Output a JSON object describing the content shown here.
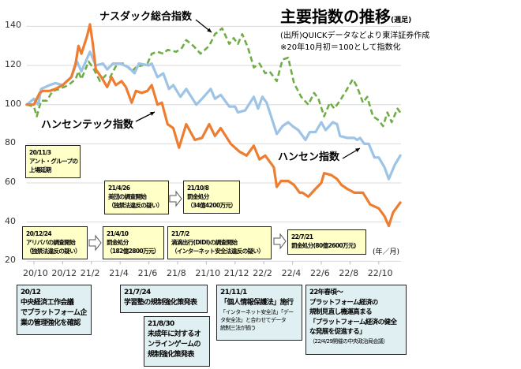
{
  "chart_data": {
    "type": "line",
    "title": "主要指数の推移",
    "title_suffix": "(週足)",
    "source": "(出所)QUICKデータなどより東洋証券作成",
    "note": "※20年10月初＝100として指数化",
    "x_unit_label": "(年／月)",
    "x_unit": "months since 2020/10",
    "x_ticks": [
      "20/10",
      "20/12",
      "21/2",
      "21/4",
      "21/6",
      "21/8",
      "21/10",
      "21/12",
      "22/2",
      "22/4",
      "22/6",
      "22/8",
      "22/10"
    ],
    "y_ticks": [
      20,
      40,
      60,
      80,
      100,
      120,
      140
    ],
    "ylim": [
      20,
      140
    ],
    "grid": true,
    "series": [
      {
        "name": "ナスダック総合指数",
        "color": "#70ad47",
        "style": "dashed",
        "points": [
          [
            -0.5,
            100
          ],
          [
            0,
            99
          ],
          [
            0.2,
            94
          ],
          [
            0.5,
            102
          ],
          [
            0.9,
            102
          ],
          [
            1.3,
            107
          ],
          [
            1.8,
            108
          ],
          [
            2.4,
            110
          ],
          [
            2.9,
            113
          ],
          [
            3.1,
            117
          ],
          [
            3.3,
            113
          ],
          [
            3.8,
            122
          ],
          [
            4.1,
            119
          ],
          [
            4.6,
            112
          ],
          [
            5.0,
            115
          ],
          [
            5.3,
            114
          ],
          [
            5.8,
            121
          ],
          [
            6.3,
            121
          ],
          [
            6.8,
            117
          ],
          [
            7.1,
            119
          ],
          [
            7.9,
            121
          ],
          [
            8.2,
            126
          ],
          [
            8.6,
            127
          ],
          [
            9.0,
            126
          ],
          [
            9.3,
            128
          ],
          [
            9.9,
            127
          ],
          [
            10.3,
            129
          ],
          [
            10.6,
            133
          ],
          [
            11.1,
            130
          ],
          [
            11.6,
            126
          ],
          [
            12.2,
            130
          ],
          [
            12.6,
            136
          ],
          [
            13.1,
            139
          ],
          [
            13.6,
            131
          ],
          [
            13.9,
            134
          ],
          [
            14.2,
            131
          ],
          [
            14.5,
            136
          ],
          [
            14.9,
            129
          ],
          [
            15.3,
            119
          ],
          [
            15.7,
            121
          ],
          [
            16.1,
            116
          ],
          [
            16.4,
            117
          ],
          [
            16.9,
            112
          ],
          [
            17.3,
            123
          ],
          [
            17.7,
            124
          ],
          [
            18.1,
            111
          ],
          [
            18.6,
            104
          ],
          [
            19.1,
            100
          ],
          [
            19.5,
            106
          ],
          [
            19.8,
            103
          ],
          [
            20.2,
            94
          ],
          [
            20.6,
            101
          ],
          [
            20.9,
            98
          ],
          [
            21.3,
            102
          ],
          [
            21.8,
            108
          ],
          [
            22.2,
            113
          ],
          [
            22.5,
            109
          ],
          [
            22.9,
            101
          ],
          [
            23.2,
            104
          ],
          [
            23.6,
            94
          ],
          [
            24.0,
            92
          ],
          [
            24.3,
            89
          ],
          [
            24.6,
            96
          ],
          [
            24.9,
            91
          ],
          [
            25.3,
            98
          ],
          [
            25.5,
            96
          ]
        ]
      },
      {
        "name": "ハンセンテック指数",
        "color": "#ed7d31",
        "style": "solid",
        "points": [
          [
            -0.5,
            100
          ],
          [
            0,
            100
          ],
          [
            0.4,
            106
          ],
          [
            0.6,
            107
          ],
          [
            1.1,
            107
          ],
          [
            1.5,
            108
          ],
          [
            2.0,
            110
          ],
          [
            2.6,
            114
          ],
          [
            2.9,
            121
          ],
          [
            3.1,
            130
          ],
          [
            3.3,
            126
          ],
          [
            3.7,
            135
          ],
          [
            3.9,
            141
          ],
          [
            4.1,
            131
          ],
          [
            4.3,
            118
          ],
          [
            4.7,
            114
          ],
          [
            5.1,
            109
          ],
          [
            5.4,
            114
          ],
          [
            5.7,
            110
          ],
          [
            6.1,
            112
          ],
          [
            6.4,
            109
          ],
          [
            6.8,
            101
          ],
          [
            7.1,
            107
          ],
          [
            7.5,
            106
          ],
          [
            7.9,
            107
          ],
          [
            8.2,
            110
          ],
          [
            8.6,
            100
          ],
          [
            8.9,
            101
          ],
          [
            9.3,
            90
          ],
          [
            9.7,
            88
          ],
          [
            10.1,
            78
          ],
          [
            10.6,
            90
          ],
          [
            11.2,
            82
          ],
          [
            11.7,
            83
          ],
          [
            12.2,
            90
          ],
          [
            12.6,
            84
          ],
          [
            13.0,
            88
          ],
          [
            13.7,
            80
          ],
          [
            14.3,
            76
          ],
          [
            14.8,
            74
          ],
          [
            15.3,
            79
          ],
          [
            15.7,
            72
          ],
          [
            16.1,
            74
          ],
          [
            16.7,
            68
          ],
          [
            16.9,
            58
          ],
          [
            17.2,
            61
          ],
          [
            17.7,
            61
          ],
          [
            18.1,
            59
          ],
          [
            18.5,
            55
          ],
          [
            18.7,
            55
          ],
          [
            19.1,
            53
          ],
          [
            19.6,
            57
          ],
          [
            20.0,
            60
          ],
          [
            20.2,
            65
          ],
          [
            20.7,
            64
          ],
          [
            21.1,
            62
          ],
          [
            21.4,
            59
          ],
          [
            21.8,
            57
          ],
          [
            22.3,
            55
          ],
          [
            22.9,
            55
          ],
          [
            23.4,
            49
          ],
          [
            24.0,
            47
          ],
          [
            24.4,
            43
          ],
          [
            24.7,
            38
          ],
          [
            25.0,
            45
          ],
          [
            25.5,
            50
          ]
        ]
      },
      {
        "name": "ハンセン指数",
        "color": "#9dc3e6",
        "style": "solid",
        "points": [
          [
            -0.5,
            100
          ],
          [
            0,
            103
          ],
          [
            0.3,
            100
          ],
          [
            0.5,
            108
          ],
          [
            1.1,
            110
          ],
          [
            1.5,
            111
          ],
          [
            2.0,
            110
          ],
          [
            2.6,
            114
          ],
          [
            3.0,
            122
          ],
          [
            3.3,
            117
          ],
          [
            3.9,
            127
          ],
          [
            4.3,
            120
          ],
          [
            4.8,
            121
          ],
          [
            5.1,
            118
          ],
          [
            5.5,
            121
          ],
          [
            6.0,
            121
          ],
          [
            6.6,
            119
          ],
          [
            7.0,
            116
          ],
          [
            7.3,
            121
          ],
          [
            8.0,
            120
          ],
          [
            8.2,
            121
          ],
          [
            8.6,
            114
          ],
          [
            9.0,
            116
          ],
          [
            9.4,
            108
          ],
          [
            9.7,
            110
          ],
          [
            10.2,
            104
          ],
          [
            10.6,
            108
          ],
          [
            11.3,
            100
          ],
          [
            11.7,
            103
          ],
          [
            12.3,
            108
          ],
          [
            12.6,
            103
          ],
          [
            13.0,
            105
          ],
          [
            13.6,
            99
          ],
          [
            14.0,
            99
          ],
          [
            14.2,
            96
          ],
          [
            14.7,
            97
          ],
          [
            15.3,
            104
          ],
          [
            15.6,
            98
          ],
          [
            15.9,
            104
          ],
          [
            16.2,
            101
          ],
          [
            16.9,
            85
          ],
          [
            17.3,
            89
          ],
          [
            17.7,
            91
          ],
          [
            18.0,
            89
          ],
          [
            18.4,
            87
          ],
          [
            18.9,
            82
          ],
          [
            19.2,
            86
          ],
          [
            19.6,
            86
          ],
          [
            20.0,
            91
          ],
          [
            20.3,
            87
          ],
          [
            20.8,
            91
          ],
          [
            21.1,
            90
          ],
          [
            21.3,
            84
          ],
          [
            21.8,
            83
          ],
          [
            22.3,
            83
          ],
          [
            22.5,
            82
          ],
          [
            22.7,
            83
          ],
          [
            23.0,
            80
          ],
          [
            23.3,
            80
          ],
          [
            23.7,
            73
          ],
          [
            24.0,
            73
          ],
          [
            24.4,
            68
          ],
          [
            24.7,
            62
          ],
          [
            25.1,
            69
          ],
          [
            25.5,
            74
          ]
        ]
      }
    ],
    "annotations_series": {
      "nasdaq": "ナスダック総合指数",
      "hstech": "ハンセンテック指数",
      "hsi": "ハンセン指数"
    }
  },
  "events_top": [
    {
      "lines": [
        "20/11/3",
        "アント・グループの",
        "上場延期"
      ]
    },
    {
      "lines": [
        "21/4/26",
        "美団の調査開始",
        "（独禁法違反の疑い）"
      ]
    },
    {
      "lines": [
        "21/10/8",
        "罰金処分",
        "（34億4200万元）"
      ]
    },
    {
      "lines": [
        "20/12/24",
        "アリババの調査開始",
        "（独禁法違反の疑い）"
      ]
    },
    {
      "lines": [
        "21/4/10",
        "罰金処分",
        "（182億2800万元）"
      ]
    },
    {
      "lines": [
        "21/7/2",
        "滴滴出行(DIDI)の調査開始",
        "（インターネット安全法違反の疑い）"
      ]
    },
    {
      "lines": [
        "22/7/21",
        "罰金処分(80億2600万元)"
      ]
    }
  ],
  "events_bottom": [
    {
      "lines": [
        "20/12",
        "中央経済工作会議",
        "でプラットフォーム企",
        "業の管理強化を確認"
      ]
    },
    {
      "lines": [
        "21/7/24",
        "学習塾の規制強化策発表"
      ]
    },
    {
      "lines": [
        "21/8/30",
        "未成年に対するオ",
        "ンラインゲームの",
        "規制強化策発表"
      ]
    },
    {
      "lines": [
        "21/11/1",
        "「個人情報保護法」施行"
      ],
      "small": [
        "「インターネット安全法」「デー",
        "タ安全法」と合わせてデータ",
        "統制三法が揃う"
      ]
    },
    {
      "lines": [
        "22年春頃～",
        "プラットフォーム経済の",
        "規制見直し機運高まる",
        "「プラットフォーム経済の健全",
        "な発展を促進する」"
      ],
      "small": [
        "（22/4/29開催の中央政治局会議）"
      ]
    }
  ]
}
